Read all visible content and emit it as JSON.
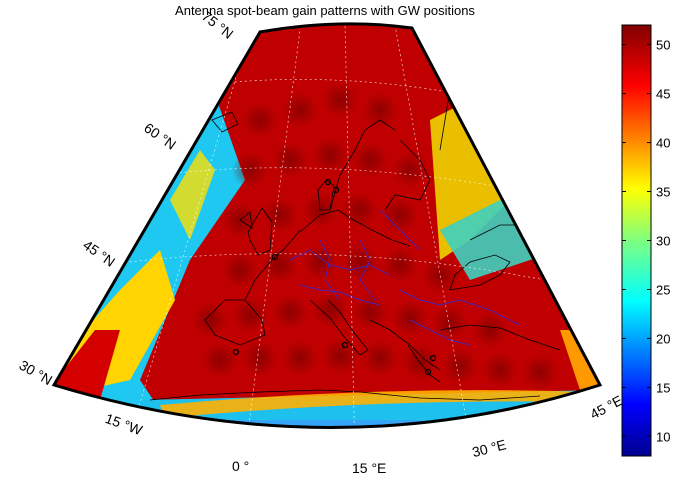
{
  "figure": {
    "title": "Antenna spot-beam gain patterns with GW positions",
    "lat_labels": [
      "75 °N",
      "60 °N",
      "45 °N",
      "30 °N"
    ],
    "lon_labels": [
      "15 °W",
      "0 °",
      "15 °E",
      "30 °E",
      "45 °E"
    ]
  },
  "colorbar": {
    "ticks": [
      "10",
      "15",
      "20",
      "25",
      "30",
      "35",
      "40",
      "45",
      "50"
    ],
    "range": [
      8,
      52
    ],
    "colormap": "jet"
  },
  "colors": {
    "high_gain": "#c00000",
    "mid_gain": "#ffd700",
    "low_gain": "#00c8ff",
    "min_gain": "#00008f",
    "frame": "#000000"
  }
}
